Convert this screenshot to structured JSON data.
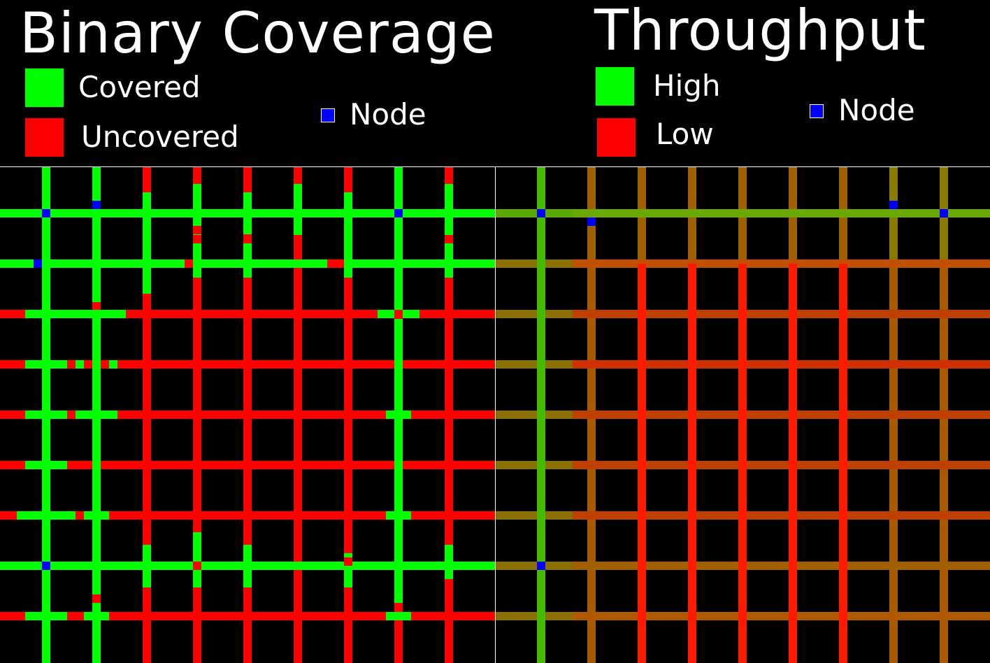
{
  "left_panel": {
    "title": "Binary Coverage",
    "legend": {
      "covered": {
        "label": "Covered",
        "color": "#00ff00"
      },
      "uncovered": {
        "label": "Uncovered",
        "color": "#ff0000"
      },
      "node": {
        "label": "Node",
        "color": "#0000ff"
      }
    }
  },
  "right_panel": {
    "title": "Throughput",
    "legend": {
      "high": {
        "label": "High",
        "color": "#00ff00"
      },
      "low": {
        "label": "Low",
        "color": "#ff0000"
      },
      "node": {
        "label": "Node",
        "color": "#0000ff"
      }
    }
  }
}
